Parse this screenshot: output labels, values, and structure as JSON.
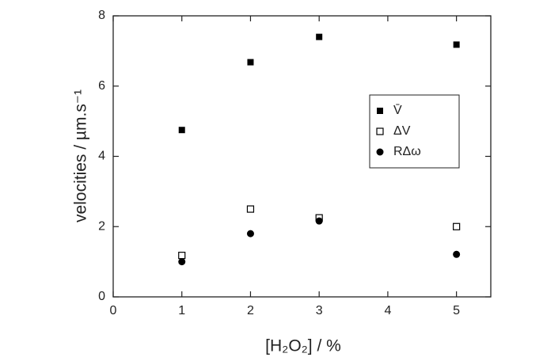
{
  "chart_data": {
    "type": "scatter",
    "xlabel": "[H₂O₂] / %",
    "ylabel": "velocities / µm.s⁻¹",
    "x": [
      1,
      2,
      3,
      5
    ],
    "series": [
      {
        "name": "V̄",
        "color": "#000000",
        "marker": "filled-square",
        "values": [
          4.75,
          6.68,
          7.4,
          7.18
        ]
      },
      {
        "name": "ΔV",
        "color": "#000000",
        "marker": "open-square",
        "values": [
          1.18,
          2.5,
          2.25,
          2.0
        ]
      },
      {
        "name": "RΔω",
        "color": "#000000",
        "marker": "filled-circle",
        "values": [
          1.0,
          1.8,
          2.16,
          1.21
        ]
      }
    ],
    "xlim": [
      0,
      5.5
    ],
    "xticks": [
      0,
      1,
      2,
      3,
      4,
      5
    ],
    "ylim": [
      0,
      8
    ],
    "yticks": [
      0,
      2,
      4,
      6,
      8
    ],
    "grid": false,
    "legend": "right"
  }
}
